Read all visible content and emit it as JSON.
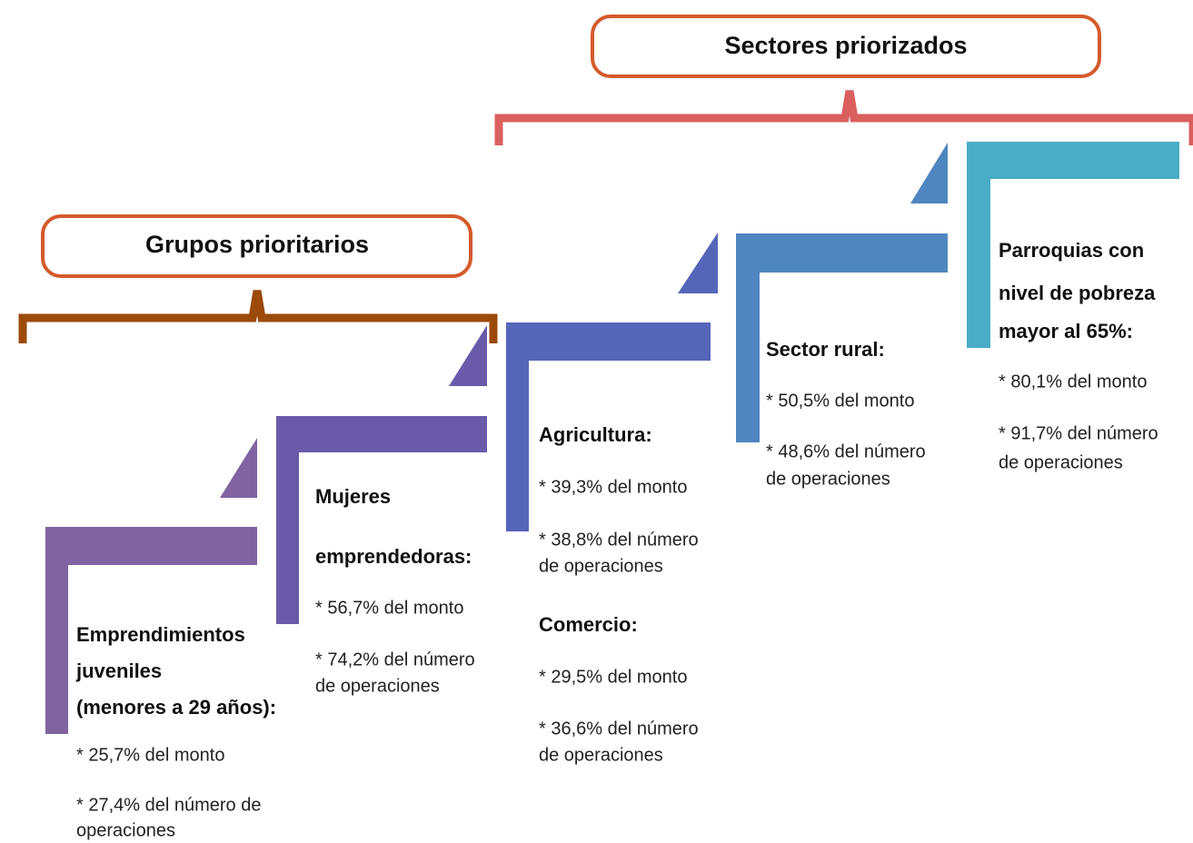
{
  "header": {
    "sectors": "Sectores priorizados",
    "groups": "Grupos prioritarios"
  },
  "columns": [
    {
      "sections": [
        {
          "title": [
            "Emprendimientos",
            "juveniles",
            "(menores a 29 años):"
          ],
          "details": [
            "* 25,7% del monto",
            "* 27,4% del número de",
            "operaciones"
          ]
        }
      ]
    },
    {
      "sections": [
        {
          "title": [
            "Mujeres",
            "emprendedoras:"
          ],
          "details": [
            "* 56,7% del monto",
            "* 74,2% del número",
            "de  operaciones"
          ]
        }
      ]
    },
    {
      "sections": [
        {
          "title": [
            "Agricultura:"
          ],
          "details": [
            "* 39,3% del monto",
            "* 38,8% del número",
            "de  operaciones"
          ]
        },
        {
          "title": [
            "Comercio:"
          ],
          "details": [
            "* 29,5% del monto",
            "* 36,6% del número",
            "de  operaciones"
          ]
        }
      ]
    },
    {
      "sections": [
        {
          "title": [
            "Sector rural:"
          ],
          "details": [
            "* 50,5% del monto",
            "* 48,6% del número",
            "de operaciones"
          ]
        }
      ]
    },
    {
      "sections": [
        {
          "title": [
            "Parroquias con",
            "nivel de pobreza",
            "mayor al 65%:"
          ],
          "details": [
            "* 80,1% del monto",
            "* 91,7% del número",
            "de operaciones"
          ]
        }
      ]
    }
  ]
}
